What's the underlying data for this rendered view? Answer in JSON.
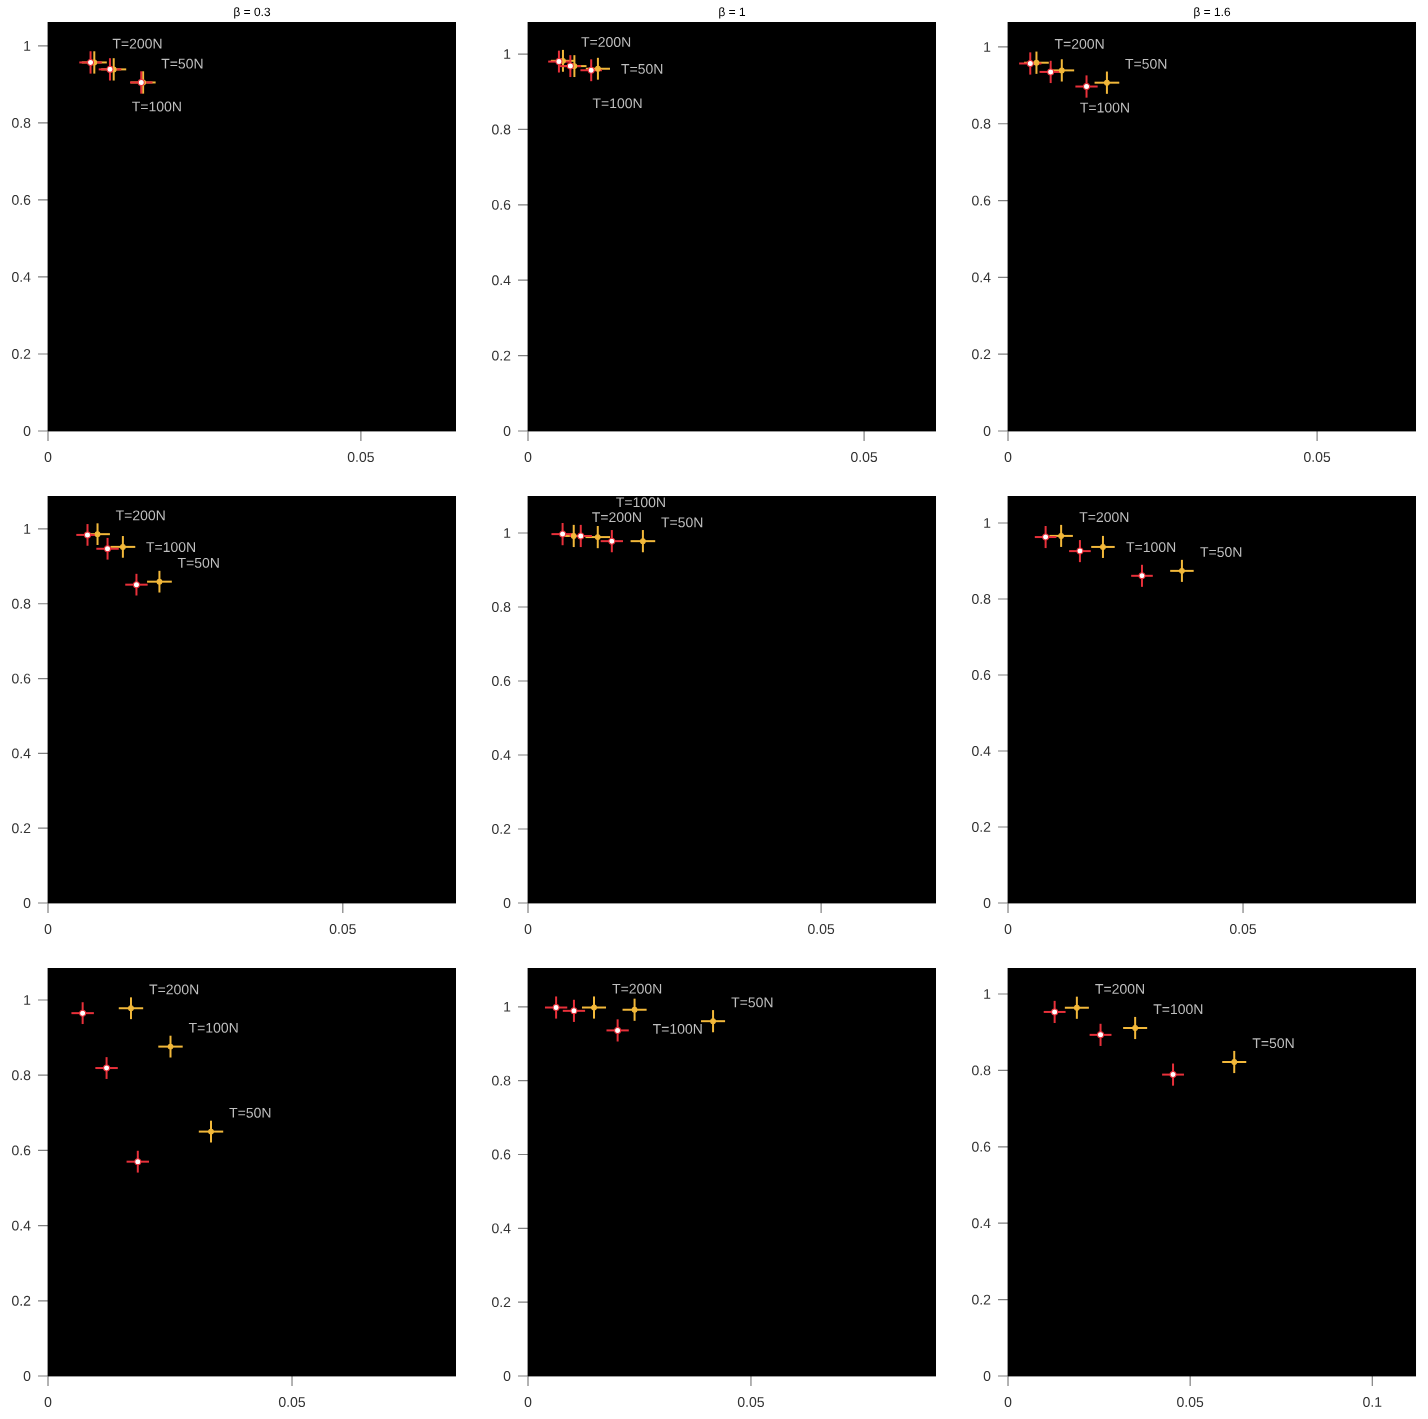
{
  "chart_data": [
    {
      "type": "scatter",
      "title": "β = 0.3",
      "xlim": [
        0,
        0.0652
      ],
      "ylim": [
        0,
        1.062
      ],
      "xticks": [
        0,
        0.05
      ],
      "yticks": [
        0,
        0.2,
        0.4,
        0.6,
        0.8,
        1
      ],
      "series": [
        {
          "color": "#e8303a",
          "marker": "circle",
          "x": [
            0.0068,
            0.0099,
            0.0149
          ],
          "values": [
            0.957,
            0.939,
            0.905
          ],
          "xerrors": [
            0.0018,
            0.0018,
            0.0018
          ],
          "errors": [
            0.029,
            0.029,
            0.029
          ]
        },
        {
          "color": "#f2b83a",
          "marker": "circle",
          "x": [
            0.0074,
            0.0105,
            0.0152
          ],
          "values": [
            0.957,
            0.939,
            0.905
          ],
          "xerrors": [
            0.002,
            0.002,
            0.002
          ],
          "errors": [
            0.029,
            0.029,
            0.029
          ]
        }
      ],
      "annotations": [
        {
          "text": "T=200N",
          "x": 0.0074,
          "y": 0.957
        },
        {
          "text": "T=100N",
          "x": 0.0105,
          "y": 0.939
        },
        {
          "text": "T=50N",
          "x": 0.0152,
          "y": 0.905
        }
      ]
    },
    {
      "type": "scatter",
      "title": "β = 1",
      "xlim": [
        0,
        0.0607
      ],
      "ylim": [
        0,
        1.085
      ],
      "xticks": [
        0,
        0.05
      ],
      "yticks": [
        0,
        0.2,
        0.4,
        0.6,
        0.8,
        1
      ],
      "series": [
        {
          "color": "#e8303a",
          "marker": "circle",
          "x": [
            0.0046,
            0.0063,
            0.0094
          ],
          "values": [
            0.98,
            0.968,
            0.957
          ],
          "xerrors": [
            0.0016,
            0.0016,
            0.0016
          ],
          "errors": [
            0.029,
            0.029,
            0.029
          ]
        },
        {
          "color": "#f2b83a",
          "marker": "circle",
          "x": [
            0.0052,
            0.0069,
            0.0104
          ],
          "values": [
            0.982,
            0.968,
            0.961
          ],
          "xerrors": [
            0.0018,
            0.0018,
            0.0018
          ],
          "errors": [
            0.029,
            0.029,
            0.029
          ]
        }
      ],
      "annotations": [
        {
          "text": "T=200N",
          "x": 0.0052,
          "y": 0.982
        },
        {
          "text": "T=100N",
          "x": 0.0069,
          "y": 0.968
        },
        {
          "text": "T=50N",
          "x": 0.0104,
          "y": 0.961
        }
      ]
    },
    {
      "type": "scatter",
      "title": "β = 1.6",
      "xlim": [
        0,
        0.066
      ],
      "ylim": [
        0,
        1.065
      ],
      "xticks": [
        0,
        0.05
      ],
      "yticks": [
        0,
        0.2,
        0.4,
        0.6,
        0.8,
        1
      ],
      "series": [
        {
          "color": "#e8303a",
          "marker": "circle",
          "x": [
            0.0036,
            0.0069,
            0.0127
          ],
          "values": [
            0.957,
            0.935,
            0.897
          ],
          "xerrors": [
            0.0018,
            0.0018,
            0.0018
          ],
          "errors": [
            0.029,
            0.029,
            0.029
          ]
        },
        {
          "color": "#f2b83a",
          "marker": "circle",
          "x": [
            0.0046,
            0.0087,
            0.016
          ],
          "values": [
            0.959,
            0.939,
            0.907
          ],
          "xerrors": [
            0.002,
            0.002,
            0.002
          ],
          "errors": [
            0.029,
            0.029,
            0.029
          ]
        }
      ],
      "annotations": [
        {
          "text": "T=200N",
          "x": 0.0046,
          "y": 0.959
        },
        {
          "text": "T=100N",
          "x": 0.0087,
          "y": 0.939
        },
        {
          "text": "T=50N",
          "x": 0.016,
          "y": 0.907
        }
      ]
    },
    {
      "type": "scatter",
      "xlim": [
        0,
        0.0692
      ],
      "ylim": [
        0,
        1.088
      ],
      "xticks": [
        0,
        0.05
      ],
      "yticks": [
        0,
        0.2,
        0.4,
        0.6,
        0.8,
        1
      ],
      "series": [
        {
          "color": "#e8303a",
          "marker": "circle",
          "x": [
            0.0067,
            0.0101,
            0.015
          ],
          "values": [
            0.984,
            0.947,
            0.851
          ],
          "xerrors": [
            0.0019,
            0.0019,
            0.0019
          ],
          "errors": [
            0.029,
            0.029,
            0.029
          ]
        },
        {
          "color": "#f2b83a",
          "marker": "circle",
          "x": [
            0.0084,
            0.0127,
            0.0189
          ],
          "values": [
            0.986,
            0.952,
            0.859
          ],
          "xerrors": [
            0.0021,
            0.0021,
            0.0021
          ],
          "errors": [
            0.029,
            0.029,
            0.029
          ]
        }
      ],
      "annotations": [
        {
          "text": "T=200N",
          "x": 0.0084,
          "y": 0.986
        },
        {
          "text": "T=100N",
          "x": 0.0127,
          "y": 0.952
        },
        {
          "text": "T=50N",
          "x": 0.0189,
          "y": 0.859
        }
      ]
    },
    {
      "type": "scatter",
      "xlim": [
        0,
        0.0696
      ],
      "ylim": [
        0,
        1.1
      ],
      "xticks": [
        0,
        0.05
      ],
      "yticks": [
        0,
        0.2,
        0.4,
        0.6,
        0.8,
        1
      ],
      "series": [
        {
          "color": "#e8303a",
          "marker": "circle",
          "x": [
            0.0059,
            0.009,
            0.0143
          ],
          "values": [
            0.997,
            0.992,
            0.978
          ],
          "xerrors": [
            0.0019,
            0.0019,
            0.0019
          ],
          "errors": [
            0.03,
            0.03,
            0.03
          ]
        },
        {
          "color": "#f2b83a",
          "marker": "circle",
          "x": [
            0.0078,
            0.0119,
            0.0196
          ],
          "values": [
            0.992,
            0.989,
            0.978
          ],
          "xerrors": [
            0.0021,
            0.0021,
            0.0021
          ],
          "errors": [
            0.03,
            0.03,
            0.03
          ]
        }
      ],
      "annotations": [
        {
          "text": "T=200N",
          "x": 0.0078,
          "y": 0.992
        },
        {
          "text": "T=100N",
          "x": 0.0119,
          "y": 0.989
        },
        {
          "text": "T=50N",
          "x": 0.0196,
          "y": 0.978
        }
      ]
    },
    {
      "type": "scatter",
      "xlim": [
        0,
        0.0868
      ],
      "ylim": [
        0,
        1.071
      ],
      "xticks": [
        0,
        0.05
      ],
      "yticks": [
        0,
        0.2,
        0.4,
        0.6,
        0.8,
        1
      ],
      "series": [
        {
          "color": "#e8303a",
          "marker": "circle",
          "x": [
            0.008,
            0.0153,
            0.0285
          ],
          "values": [
            0.963,
            0.926,
            0.861
          ],
          "xerrors": [
            0.0023,
            0.0023,
            0.0023
          ],
          "errors": [
            0.029,
            0.029,
            0.029
          ]
        },
        {
          "color": "#f2b83a",
          "marker": "circle",
          "x": [
            0.0113,
            0.0202,
            0.037
          ],
          "values": [
            0.966,
            0.937,
            0.874
          ],
          "xerrors": [
            0.0025,
            0.0025,
            0.0025
          ],
          "errors": [
            0.029,
            0.029,
            0.029
          ]
        }
      ],
      "annotations": [
        {
          "text": "T=200N",
          "x": 0.0113,
          "y": 0.966
        },
        {
          "text": "T=100N",
          "x": 0.0202,
          "y": 0.937
        },
        {
          "text": "T=50N",
          "x": 0.037,
          "y": 0.874
        }
      ]
    },
    {
      "type": "scatter",
      "xlim": [
        0,
        0.0836
      ],
      "ylim": [
        0,
        1.085
      ],
      "xticks": [
        0,
        0.05
      ],
      "yticks": [
        0,
        0.2,
        0.4,
        0.6,
        0.8,
        1
      ],
      "series": [
        {
          "color": "#e8303a",
          "marker": "circle",
          "x": [
            0.0071,
            0.012,
            0.0184
          ],
          "values": [
            0.965,
            0.819,
            0.57
          ],
          "xerrors": [
            0.0023,
            0.0023,
            0.0023
          ],
          "errors": [
            0.029,
            0.029,
            0.029
          ]
        },
        {
          "color": "#f2b83a",
          "marker": "circle",
          "x": [
            0.017,
            0.0251,
            0.0334
          ],
          "values": [
            0.978,
            0.876,
            0.65
          ],
          "xerrors": [
            0.0025,
            0.0025,
            0.0025
          ],
          "errors": [
            0.029,
            0.029,
            0.029
          ]
        }
      ],
      "annotations": [
        {
          "text": "T=200N",
          "x": 0.017,
          "y": 0.978
        },
        {
          "text": "T=100N",
          "x": 0.0251,
          "y": 0.876
        },
        {
          "text": "T=50N",
          "x": 0.0334,
          "y": 0.65
        }
      ]
    },
    {
      "type": "scatter",
      "xlim": [
        0,
        0.0915
      ],
      "ylim": [
        0,
        1.105
      ],
      "xticks": [
        0,
        0.05
      ],
      "yticks": [
        0,
        0.2,
        0.4,
        0.6,
        0.8,
        1
      ],
      "series": [
        {
          "color": "#e8303a",
          "marker": "circle",
          "x": [
            0.0063,
            0.0103,
            0.0201
          ],
          "values": [
            0.998,
            0.989,
            0.936
          ],
          "xerrors": [
            0.0025,
            0.0025,
            0.0025
          ],
          "errors": [
            0.03,
            0.03,
            0.03
          ]
        },
        {
          "color": "#f2b83a",
          "marker": "circle",
          "x": [
            0.0148,
            0.0239,
            0.0415
          ],
          "values": [
            0.998,
            0.992,
            0.961
          ],
          "xerrors": [
            0.0027,
            0.0027,
            0.0027
          ],
          "errors": [
            0.03,
            0.03,
            0.03
          ]
        }
      ],
      "annotations": [
        {
          "text": "T=200N",
          "x": 0.0148,
          "y": 0.998
        },
        {
          "text": "T=100N",
          "x": 0.0239,
          "y": 0.992
        },
        {
          "text": "T=50N",
          "x": 0.0415,
          "y": 0.961
        }
      ]
    },
    {
      "type": "scatter",
      "xlim": [
        0,
        0.112
      ],
      "ylim": [
        0,
        1.068
      ],
      "xticks": [
        0,
        0.05,
        0.1
      ],
      "yticks": [
        0,
        0.2,
        0.4,
        0.6,
        0.8,
        1
      ],
      "series": [
        {
          "color": "#e8303a",
          "marker": "circle",
          "x": [
            0.0128,
            0.0254,
            0.0453
          ],
          "values": [
            0.953,
            0.893,
            0.789
          ],
          "xerrors": [
            0.003,
            0.003,
            0.003
          ],
          "errors": [
            0.029,
            0.029,
            0.029
          ]
        },
        {
          "color": "#f2b83a",
          "marker": "circle",
          "x": [
            0.0189,
            0.0349,
            0.0621
          ],
          "values": [
            0.964,
            0.911,
            0.822
          ],
          "xerrors": [
            0.0033,
            0.0033,
            0.0033
          ],
          "errors": [
            0.029,
            0.029,
            0.029
          ]
        }
      ],
      "annotations": [
        {
          "text": "T=200N",
          "x": 0.0189,
          "y": 0.964
        },
        {
          "text": "T=100N",
          "x": 0.0349,
          "y": 0.911
        },
        {
          "text": "T=50N",
          "x": 0.0621,
          "y": 0.822
        }
      ]
    }
  ]
}
